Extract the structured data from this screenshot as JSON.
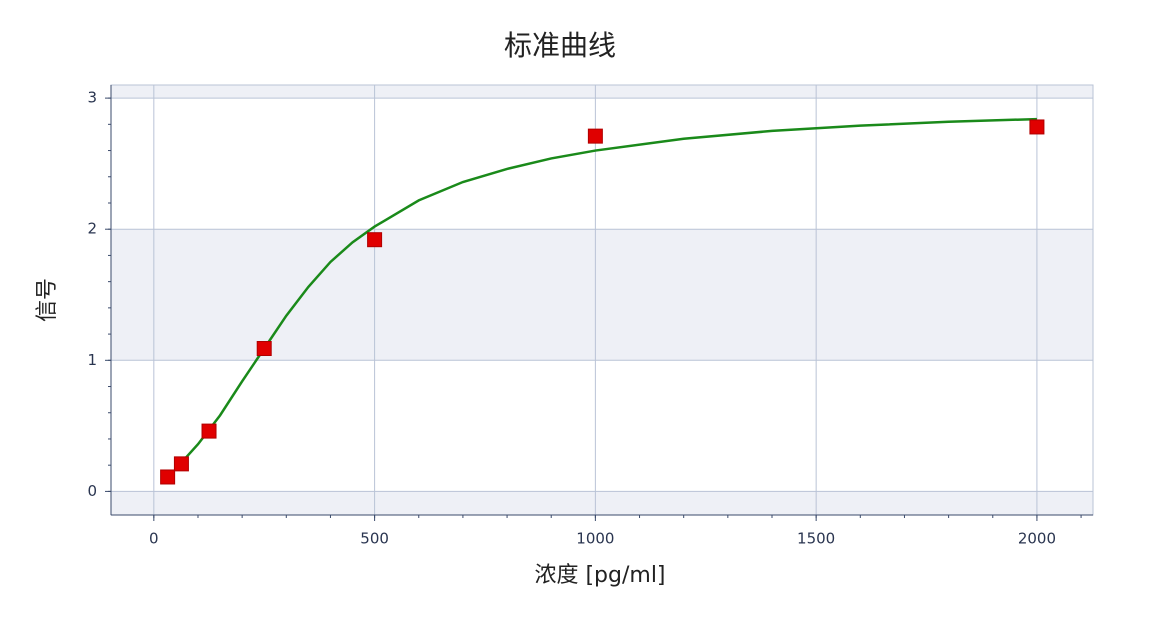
{
  "chart_data": {
    "type": "scatter",
    "title": "标准曲线",
    "x_label": "浓度 [pg/ml]",
    "y_label": "信号",
    "x": [
      31.25,
      62.5,
      125,
      250,
      500,
      1000,
      2000
    ],
    "values": [
      0.11,
      0.21,
      0.46,
      1.09,
      1.92,
      2.71,
      2.78
    ],
    "color": "#e00000",
    "fit": {
      "color": "#1a8a1a",
      "x": [
        62.5,
        100,
        150,
        200,
        250,
        300,
        350,
        400,
        450,
        500,
        600,
        700,
        800,
        900,
        1000,
        1200,
        1400,
        1600,
        1800,
        2000
      ],
      "values": [
        0.22,
        0.36,
        0.58,
        0.84,
        1.09,
        1.34,
        1.56,
        1.75,
        1.9,
        2.02,
        2.22,
        2.36,
        2.46,
        2.54,
        2.6,
        2.69,
        2.75,
        2.79,
        2.82,
        2.84
      ]
    },
    "xlim": [
      -97,
      2127
    ],
    "ylim": [
      -0.18,
      3.1
    ],
    "xticks": [
      0,
      500,
      1000,
      1500,
      2000
    ],
    "yticks": [
      0,
      1,
      2,
      3
    ],
    "x_minor_step": 100,
    "y_minor_step": 0.2,
    "grid": true,
    "banded": true
  }
}
